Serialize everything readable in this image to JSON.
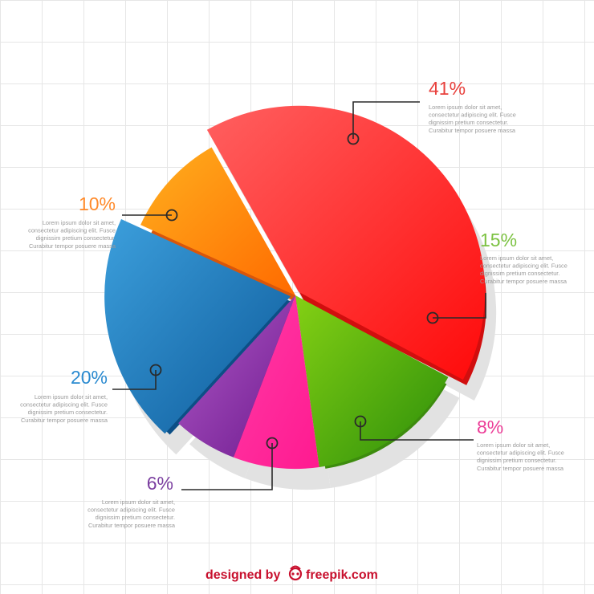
{
  "chart_data": {
    "type": "pie",
    "title": "",
    "unit": "%",
    "slices": [
      {
        "label": "41%",
        "value": 41,
        "color_light": "#ff6060",
        "color_dark": "#ff0a0a",
        "side": "#d10e0e",
        "label_color": "#e8403c",
        "text": [
          "Lorem ipsum dolor sit amet,",
          "consectetur adipiscing elit. Fusce",
          "dignissim pretium consectetur.",
          "Curabitur tempor posuere massa"
        ]
      },
      {
        "label": "15%",
        "value": 15,
        "color_light": "#84d014",
        "color_dark": "#2c8e0a",
        "side": "#3d8c0e",
        "label_color": "#7cc242",
        "text": [
          "Lorem ipsum dolor sit amet,",
          "consectetur adipiscing elit. Fusce",
          "dignissim pretium consectetur.",
          "Curabitur tempor posuere massa"
        ]
      },
      {
        "label": "8%",
        "value": 8,
        "color_light": "#ff3aa6",
        "color_dark": "#ff1a90",
        "side": "#c01470",
        "label_color": "#ec3c97",
        "text": [
          "Lorem ipsum dolor sit amet,",
          "consectetur adipiscing elit. Fusce",
          "dignissim pretium consectetur.",
          "Curabitur tempor posuere massa"
        ]
      },
      {
        "label": "6%",
        "value": 6,
        "color_light": "#b05ac8",
        "color_dark": "#6e1a8e",
        "side": "#5e1d78",
        "label_color": "#7b3fa0",
        "text": [
          "Lorem ipsum dolor sit amet,",
          "consectetur adipiscing elit. Fusce",
          "dignissim pretium consectetur.",
          "Curabitur tempor posuere massa"
        ]
      },
      {
        "label": "20%",
        "value": 20,
        "color_light": "#3c9fdc",
        "color_dark": "#0d5a9a",
        "side": "#0c4f86",
        "label_color": "#2a8ad0",
        "text": [
          "Lorem ipsum dolor sit amet,",
          "consectetur adipiscing elit. Fusce",
          "dignissim pretium consectetur.",
          "Curabitur tempor posuere massa"
        ]
      },
      {
        "label": "10%",
        "value": 10,
        "color_light": "#ffb01e",
        "color_dark": "#ff6a00",
        "side": "#d9560a",
        "label_color": "#ff8a2a",
        "text": [
          "Lorem ipsum dolor sit amet,",
          "consectetur adipiscing elit. Fusce",
          "dignissim pretium consectetur.",
          "Curabitur tempor posuere massa"
        ]
      }
    ],
    "grid": true,
    "legend": "none"
  },
  "credit": {
    "designed_by": "designed by",
    "brand": "freepik.com"
  },
  "colors": {
    "grid_line": "#e6e6e6",
    "connector": "#2a2a2a",
    "shadow": "#e2e2e2"
  }
}
